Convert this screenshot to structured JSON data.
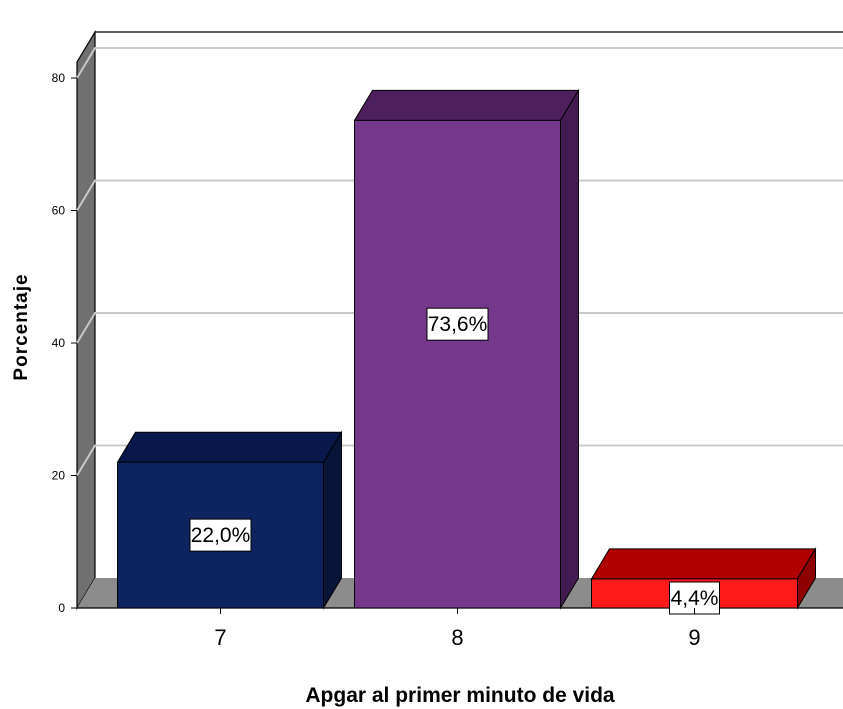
{
  "chart_data": {
    "type": "bar",
    "categories": [
      "7",
      "8",
      "9"
    ],
    "values": [
      22.0,
      73.6,
      4.4
    ],
    "data_labels": [
      "22,0%",
      "73,6%",
      "4,4%"
    ],
    "xlabel": "Apgar al primer minuto de vida",
    "ylabel": "Porcentaje",
    "ylim": [
      0,
      80
    ],
    "yticks": [
      "0",
      "20",
      "40",
      "60",
      "80"
    ],
    "grid": true,
    "legend": "none",
    "style": "3d",
    "colors": {
      "bars": [
        {
          "front": "#0d2461",
          "top": "#08184a",
          "side": "#071538"
        },
        {
          "front": "#76388b",
          "top": "#4d1f5c",
          "side": "#431a51"
        },
        {
          "front": "#ff1a1a",
          "top": "#b00000",
          "side": "#8f0000"
        }
      ],
      "wall": "#ffffff",
      "wall_side": "#707070",
      "floor": "#8c8c8c",
      "grid": "#c8c8c8"
    }
  }
}
